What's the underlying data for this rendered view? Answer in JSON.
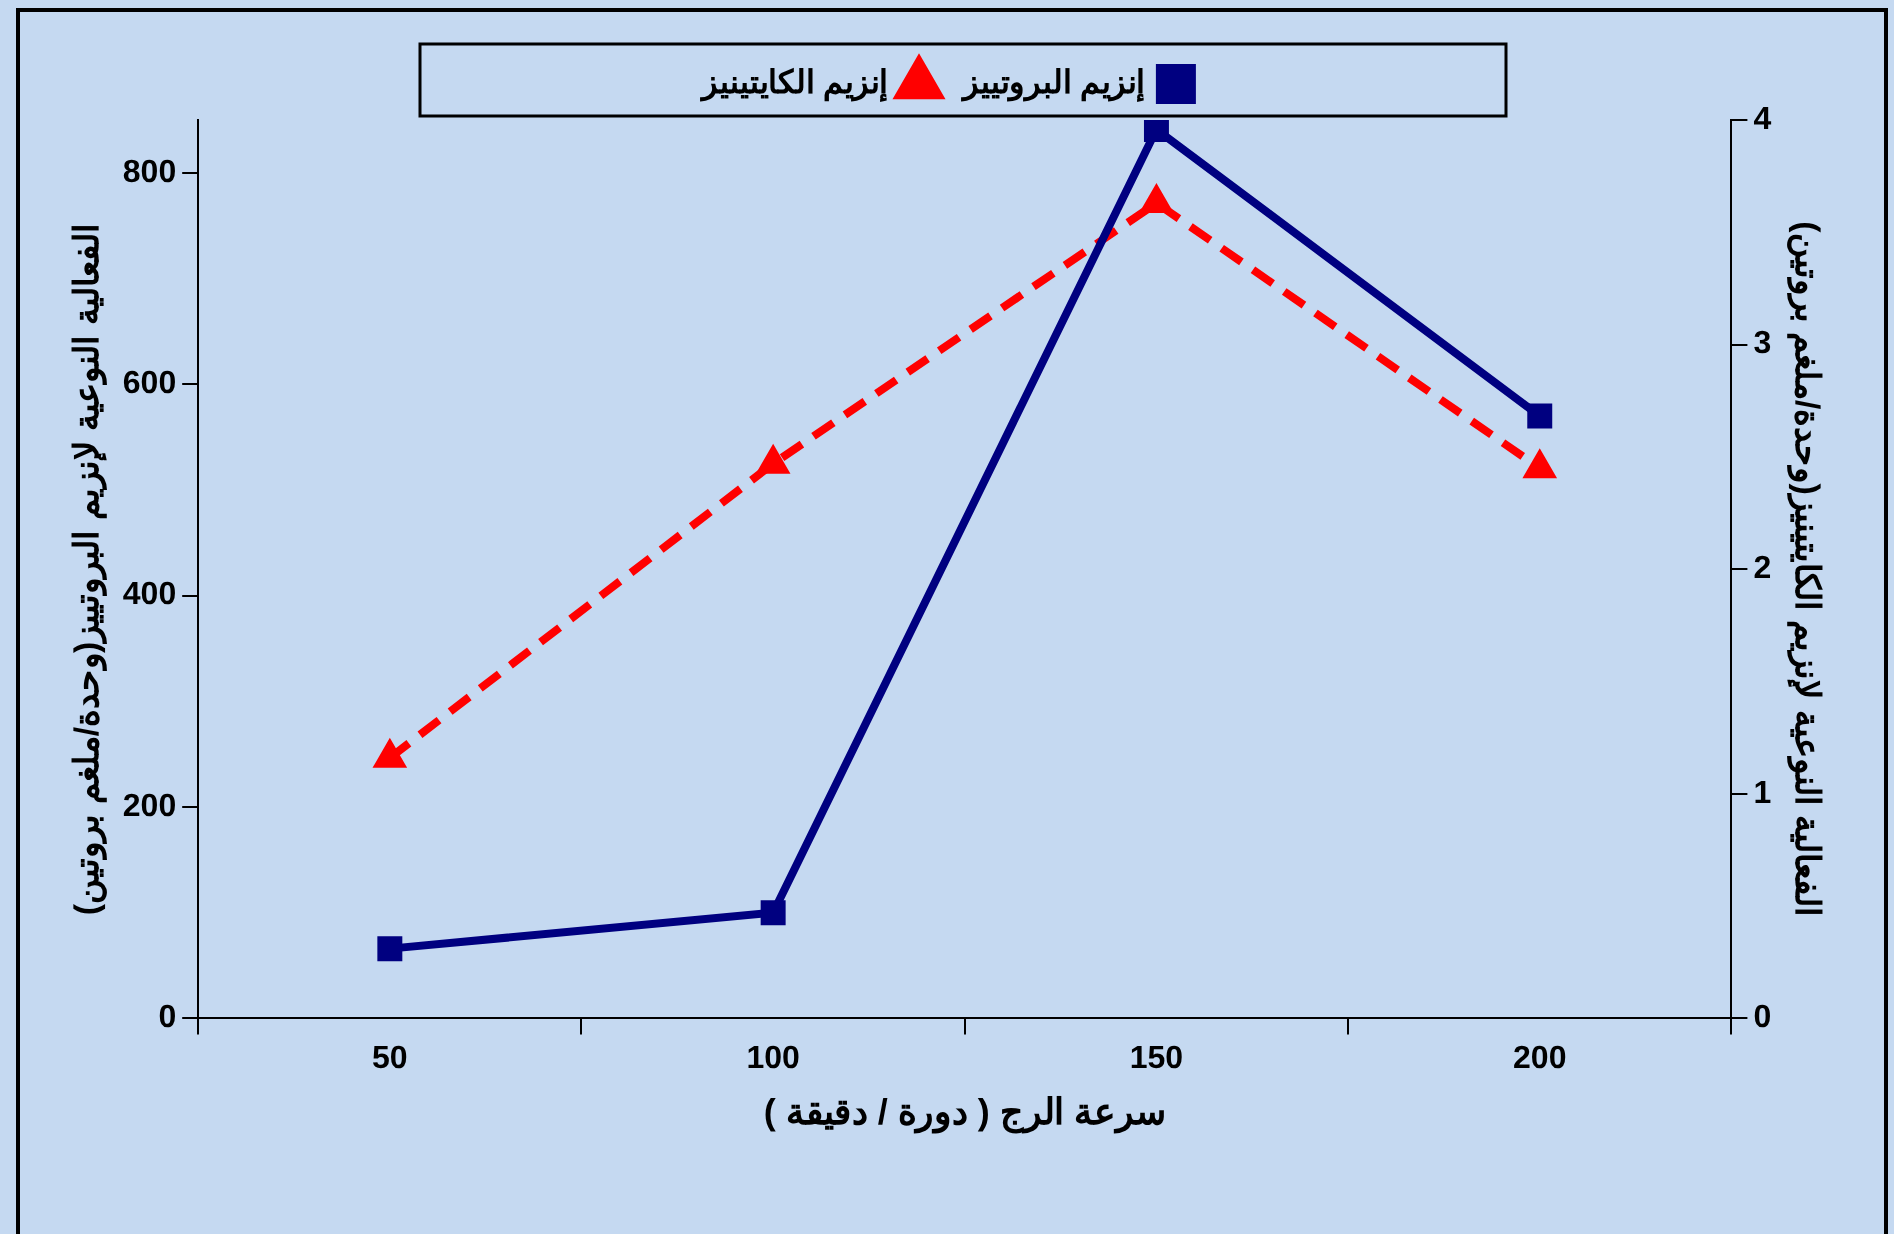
{
  "chart_data": {
    "type": "line",
    "xlabel": "سرعة الرج ( دورة / دقيقة )",
    "ylabel": "الفعالية النوعية لإنزيم البروتييز(وحدة/ملغم بروتين)",
    "y2label": "الفعالية النوعية لإنزيم الكايتينيز(وحدة/ملغم بروتين)",
    "categories": [
      "50",
      "100",
      "150",
      "200"
    ],
    "series": [
      {
        "name": "إنزيم البروتييز",
        "color": "#000080",
        "marker": "square",
        "line_style": "solid",
        "values": [
          66,
          100,
          841,
          570
        ]
      },
      {
        "name": "إنزيم الكايتينيز",
        "color": "#ff0000",
        "marker": "triangle",
        "line_style": "dashed",
        "axis": "y2",
        "values": [
          1.16,
          2.47,
          3.63,
          2.45
        ]
      }
    ],
    "ylim": [
      0,
      850
    ],
    "yticks": [
      0,
      200,
      400,
      600,
      800
    ],
    "y2lim": [
      0,
      4
    ],
    "y2ticks": [
      0,
      1,
      2,
      3,
      4
    ],
    "grid": false,
    "legend": "top"
  }
}
